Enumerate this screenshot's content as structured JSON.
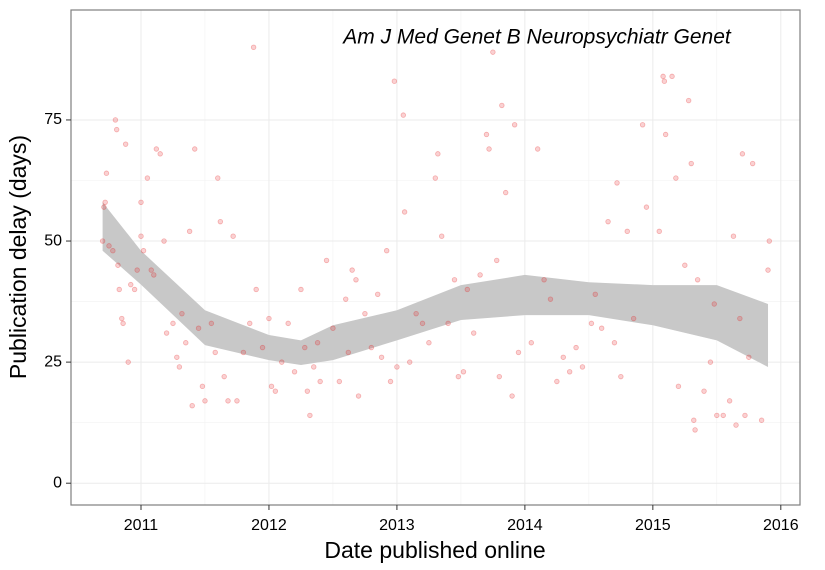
{
  "chart_data": {
    "type": "scatter",
    "annotation": "Am J Med Genet B Neuropsychiatr Genet",
    "x_label": "Date published online",
    "y_label": "Publication delay (days)",
    "xlim": [
      2010.453,
      2016.15
    ],
    "ylim": [
      -4.5,
      97.7
    ],
    "xticks": [
      2011,
      2012,
      2013,
      2014,
      2015,
      2016
    ],
    "yticks": [
      0,
      25,
      50,
      75
    ],
    "grid": true,
    "points": {
      "color": "#e41a1c",
      "x": [
        2010.7,
        2010.71,
        2010.72,
        2010.73,
        2010.75,
        2010.78,
        2010.8,
        2010.81,
        2010.82,
        2010.83,
        2010.85,
        2010.86,
        2010.88,
        2010.9,
        2010.92,
        2010.95,
        2010.97,
        2011.0,
        2011.0,
        2011.02,
        2011.05,
        2011.08,
        2011.1,
        2011.12,
        2011.15,
        2011.18,
        2011.2,
        2011.25,
        2011.28,
        2011.3,
        2011.32,
        2011.35,
        2011.38,
        2011.4,
        2011.42,
        2011.45,
        2011.48,
        2011.5,
        2011.55,
        2011.58,
        2011.6,
        2011.62,
        2011.65,
        2011.68,
        2011.72,
        2011.75,
        2011.8,
        2011.85,
        2011.88,
        2011.9,
        2011.95,
        2012.0,
        2012.02,
        2012.05,
        2012.1,
        2012.15,
        2012.2,
        2012.25,
        2012.28,
        2012.3,
        2012.32,
        2012.35,
        2012.38,
        2012.4,
        2012.45,
        2012.5,
        2012.55,
        2012.6,
        2012.62,
        2012.65,
        2012.68,
        2012.7,
        2012.75,
        2012.8,
        2012.85,
        2012.88,
        2012.92,
        2012.95,
        2012.98,
        2013.0,
        2013.05,
        2013.06,
        2013.1,
        2013.15,
        2013.2,
        2013.25,
        2013.3,
        2013.32,
        2013.35,
        2013.4,
        2013.45,
        2013.48,
        2013.52,
        2013.55,
        2013.6,
        2013.65,
        2013.7,
        2013.72,
        2013.75,
        2013.78,
        2013.8,
        2013.82,
        2013.85,
        2013.9,
        2013.92,
        2013.95,
        2014.05,
        2014.1,
        2014.15,
        2014.2,
        2014.25,
        2014.3,
        2014.35,
        2014.4,
        2014.45,
        2014.52,
        2014.55,
        2014.6,
        2014.65,
        2014.7,
        2014.72,
        2014.75,
        2014.8,
        2014.85,
        2014.92,
        2014.95,
        2015.05,
        2015.08,
        2015.09,
        2015.1,
        2015.15,
        2015.18,
        2015.2,
        2015.25,
        2015.28,
        2015.3,
        2015.32,
        2015.33,
        2015.35,
        2015.4,
        2015.45,
        2015.48,
        2015.5,
        2015.55,
        2015.6,
        2015.63,
        2015.65,
        2015.68,
        2015.7,
        2015.72,
        2015.75,
        2015.78,
        2015.85,
        2015.9,
        2015.91
      ],
      "y": [
        50,
        57,
        58,
        64,
        49,
        48,
        75,
        73,
        45,
        40,
        34,
        33,
        70,
        25,
        41,
        40,
        44,
        51,
        58,
        48,
        63,
        44,
        43,
        69,
        68,
        50,
        31,
        33,
        26,
        24,
        35,
        29,
        52,
        16,
        69,
        32,
        20,
        17,
        33,
        27,
        63,
        54,
        22,
        17,
        51,
        17,
        27,
        33,
        90,
        40,
        28,
        34,
        20,
        19,
        25,
        33,
        23,
        40,
        28,
        19,
        14,
        24,
        29,
        21,
        46,
        32,
        21,
        38,
        27,
        44,
        42,
        18,
        35,
        28,
        39,
        26,
        48,
        21,
        83,
        24,
        76,
        56,
        25,
        35,
        33,
        29,
        63,
        68,
        51,
        33,
        42,
        22,
        23,
        40,
        31,
        43,
        72,
        69,
        89,
        46,
        22,
        78,
        60,
        18,
        74,
        27,
        29,
        69,
        42,
        38,
        21,
        26,
        23,
        28,
        24,
        33,
        39,
        32,
        54,
        29,
        62,
        22,
        52,
        34,
        74,
        57,
        52,
        84,
        83,
        72,
        84,
        63,
        20,
        45,
        79,
        66,
        13,
        11,
        42,
        19,
        25,
        37,
        14,
        14,
        17,
        51,
        12,
        34,
        68,
        14,
        26,
        66,
        13,
        44,
        50
      ]
    },
    "smooth": {
      "color": "#c8c8c8",
      "x": [
        2010.7,
        2011.0,
        2011.5,
        2012.0,
        2012.25,
        2012.5,
        2013.0,
        2013.5,
        2014.0,
        2014.5,
        2015.0,
        2015.5,
        2015.9
      ],
      "lower": [
        48,
        41,
        28.5,
        25.4,
        24.4,
        25.4,
        29.5,
        33.7,
        34.7,
        34.7,
        32.6,
        29.5,
        24
      ],
      "upper": [
        58,
        48,
        35.7,
        30.6,
        29.5,
        32.6,
        35.7,
        40.9,
        43,
        41.5,
        40.9,
        40.9,
        37
      ]
    }
  }
}
